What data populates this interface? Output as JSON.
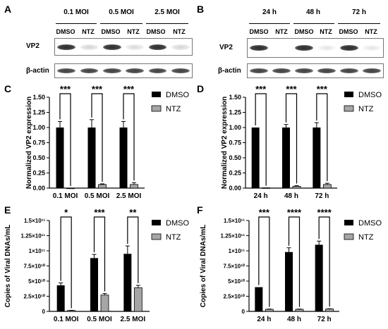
{
  "panels": {
    "a": "A",
    "b": "B",
    "c": "C",
    "d": "D",
    "e": "E",
    "f": "F"
  },
  "blot_a": {
    "groups": [
      "0.1 MOI",
      "0.5 MOI",
      "2.5 MOI"
    ],
    "lanes": [
      "DMSO",
      "NTZ",
      "DMSO",
      "NTZ",
      "DMSO",
      "NTZ"
    ],
    "row_labels": [
      "VP2",
      "β-actin"
    ],
    "vp2_intensity": [
      0.95,
      0.12,
      0.95,
      0.1,
      0.95,
      0.12
    ],
    "actin_intensity": [
      0.85,
      0.85,
      0.85,
      0.85,
      0.85,
      0.85
    ]
  },
  "blot_b": {
    "groups": [
      "24 h",
      "48 h",
      "72 h"
    ],
    "lanes": [
      "DMSO",
      "NTZ",
      "DMSO",
      "NTZ",
      "DMSO",
      "NTZ"
    ],
    "row_labels": [
      "VP2",
      "β-actin"
    ],
    "vp2_intensity": [
      0.95,
      0.0,
      0.95,
      0.05,
      0.95,
      0.05
    ],
    "actin_intensity": [
      0.85,
      0.85,
      0.85,
      0.85,
      0.85,
      0.85
    ]
  },
  "legend": {
    "dmso": "DMSO",
    "ntz": "NTZ"
  },
  "colors": {
    "dmso": "#000000",
    "ntz": "#a6a6a6"
  },
  "chart_data": [
    {
      "id": "C",
      "type": "bar",
      "ylabel": "Normalized VP2 expression",
      "categories": [
        "0.1 MOI",
        "0.5 MOI",
        "2.5 MOI"
      ],
      "ylim": [
        0,
        1.5
      ],
      "yticks": [
        0.0,
        0.25,
        0.5,
        0.75,
        1.0,
        1.25,
        1.5
      ],
      "ytick_labels": [
        "0.00",
        "0.25",
        "0.50",
        "0.75",
        "1.00",
        "1.25",
        "1.50"
      ],
      "series": [
        {
          "name": "DMSO",
          "values": [
            1.0,
            1.0,
            1.0
          ],
          "errors": [
            0.1,
            0.13,
            0.1
          ]
        },
        {
          "name": "NTZ",
          "values": [
            0.0,
            0.06,
            0.06
          ],
          "errors": [
            0.0,
            0.01,
            0.03
          ]
        }
      ],
      "significance": [
        "***",
        "***",
        "***"
      ]
    },
    {
      "id": "D",
      "type": "bar",
      "ylabel": "Normalized VP2 expression",
      "categories": [
        "24 h",
        "48 h",
        "72 h"
      ],
      "ylim": [
        0,
        1.5
      ],
      "yticks": [
        0.0,
        0.25,
        0.5,
        0.75,
        1.0,
        1.25,
        1.5
      ],
      "ytick_labels": [
        "0.00",
        "0.25",
        "0.50",
        "0.75",
        "1.00",
        "1.25",
        "1.50"
      ],
      "series": [
        {
          "name": "DMSO",
          "values": [
            1.0,
            1.0,
            1.0
          ],
          "errors": [
            0.0,
            0.05,
            0.08
          ]
        },
        {
          "name": "NTZ",
          "values": [
            0.005,
            0.03,
            0.06
          ],
          "errors": [
            0.0,
            0.01,
            0.02
          ]
        }
      ],
      "significance": [
        "***",
        "***",
        "***"
      ]
    },
    {
      "id": "E",
      "type": "bar",
      "ylabel": "Copies of Viral DNAs/mL",
      "categories": [
        "0.1 MOI",
        "0.5 MOI",
        "2.5 MOI"
      ],
      "ylim": [
        0,
        150000000000
      ],
      "yticks": [
        0,
        25000000000,
        50000000000,
        75000000000,
        100000000000,
        125000000000,
        150000000000
      ],
      "ytick_labels": [
        "0",
        "2.5×10¹⁰",
        "5×10¹⁰",
        "7.5×10¹⁰",
        "1×10¹¹",
        "1.25×10¹¹",
        "1.5×10¹¹"
      ],
      "series": [
        {
          "name": "DMSO",
          "values": [
            43000000000,
            88000000000,
            95000000000
          ],
          "errors": [
            4000000000,
            6000000000,
            13000000000
          ]
        },
        {
          "name": "NTZ",
          "values": [
            1500000000,
            27000000000,
            39000000000
          ],
          "errors": [
            300000000,
            2500000000,
            4000000000
          ]
        }
      ],
      "significance": [
        "*",
        "***",
        "**"
      ]
    },
    {
      "id": "F",
      "type": "bar",
      "ylabel": "Copies of Viral DNAs/mL",
      "categories": [
        "24 h",
        "48 h",
        "72 h"
      ],
      "ylim": [
        0,
        150000000000
      ],
      "yticks": [
        0,
        25000000000,
        50000000000,
        75000000000,
        100000000000,
        125000000000,
        150000000000
      ],
      "ytick_labels": [
        "0",
        "2.5×10¹⁰",
        "5×10¹⁰",
        "7.5×10¹⁰",
        "1×10¹¹",
        "1.25×10¹¹",
        "1.5×10¹¹"
      ],
      "series": [
        {
          "name": "DMSO",
          "values": [
            40000000000,
            98000000000,
            110000000000
          ],
          "errors": [
            0,
            7000000000,
            6000000000
          ]
        },
        {
          "name": "NTZ",
          "values": [
            3500000000,
            3500000000,
            4000000000
          ],
          "errors": [
            400000000,
            400000000,
            400000000
          ]
        }
      ],
      "significance": [
        "***",
        "****",
        "****"
      ]
    }
  ]
}
